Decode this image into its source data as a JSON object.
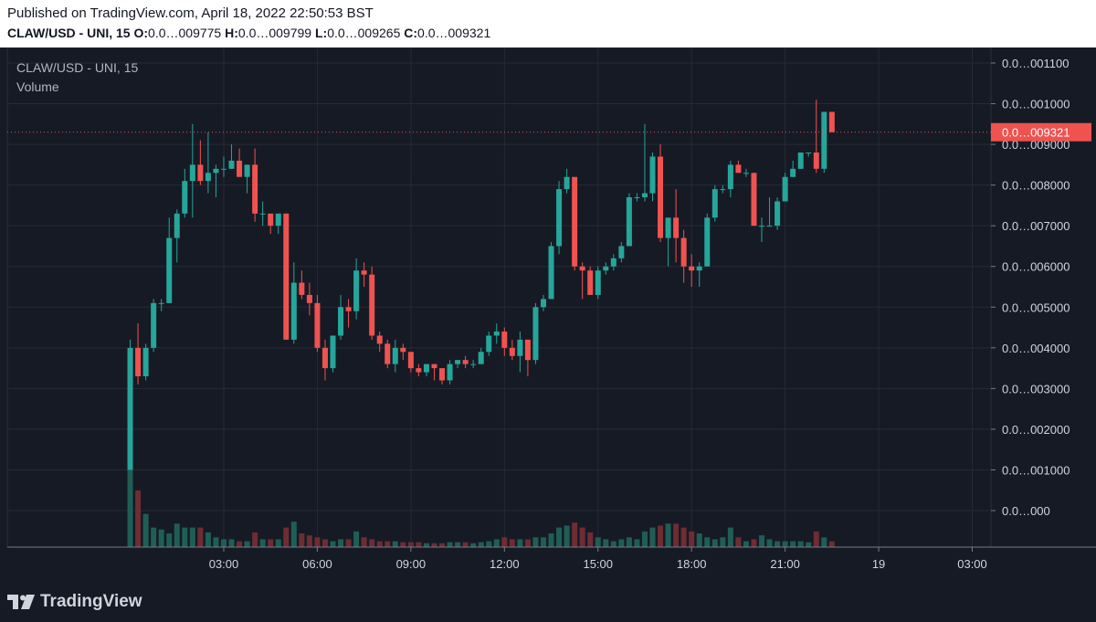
{
  "header": {
    "published": "Published on TradingView.com, April 18, 2022 22:50:53 BST",
    "symbol": "CLAW/USD - UNI, 15",
    "open_label": "O:",
    "open_value": "0.0…009775",
    "high_label": "H:",
    "high_value": "0.0…009799",
    "low_label": "L:",
    "low_value": "0.0…009265",
    "close_label": "C:",
    "close_value": "0.0…009321"
  },
  "legend": {
    "symbol": "CLAW/USD - UNI, 15",
    "volume": "Volume"
  },
  "footer": {
    "brand": "TradingView",
    "logo_icon": "tradingview-logo-icon"
  },
  "colors": {
    "background": "#161a25",
    "grid": "#262a36",
    "up": "#26a69a",
    "down": "#ef5350",
    "up_volume": "#1f5e55",
    "down_volume": "#6e2c33",
    "axis_text": "#d1d4dc",
    "price_line": "#ef5350"
  },
  "chart_data": {
    "type": "candlestick",
    "title": "CLAW/USD - UNI, 15",
    "interval": "15",
    "ylim": [
      -9e-07,
      1.12e-05
    ],
    "y_ticks": [
      {
        "value": 1.1e-05,
        "label": "0.0…001100"
      },
      {
        "value": 1e-05,
        "label": "0.0…001000"
      },
      {
        "value": 9e-06,
        "label": "0.0…009000"
      },
      {
        "value": 8e-06,
        "label": "0.0…008000"
      },
      {
        "value": 7e-06,
        "label": "0.0…007000"
      },
      {
        "value": 6e-06,
        "label": "0.0…006000"
      },
      {
        "value": 5e-06,
        "label": "0.0…005000"
      },
      {
        "value": 4e-06,
        "label": "0.0…004000"
      },
      {
        "value": 3e-06,
        "label": "0.0…003000"
      },
      {
        "value": 2e-06,
        "label": "0.0…002000"
      },
      {
        "value": 1e-06,
        "label": "0.0…001000"
      },
      {
        "value": 0.0,
        "label": "0.0…000"
      }
    ],
    "x_ticks": [
      {
        "hours": 3,
        "label": "03:00"
      },
      {
        "hours": 6,
        "label": "06:00"
      },
      {
        "hours": 9,
        "label": "09:00"
      },
      {
        "hours": 12,
        "label": "12:00"
      },
      {
        "hours": 15,
        "label": "15:00"
      },
      {
        "hours": 18,
        "label": "18:00"
      },
      {
        "hours": 21,
        "label": "21:00"
      },
      {
        "hours": 24,
        "label": "19"
      },
      {
        "hours": 27,
        "label": "03:00"
      }
    ],
    "x_range_hours": [
      -3.94,
      27.6
    ],
    "last_price": {
      "value": 9.3e-06,
      "label": "0.0…009321"
    },
    "volume_max": 100,
    "candles": [
      {
        "o": 1e-06,
        "h": 4.2e-06,
        "l": 1e-06,
        "c": 4e-06,
        "v": 100
      },
      {
        "o": 4e-06,
        "h": 4.6e-06,
        "l": 3.1e-06,
        "c": 3.3e-06,
        "v": 58
      },
      {
        "o": 3.3e-06,
        "h": 4.1e-06,
        "l": 3.2e-06,
        "c": 4e-06,
        "v": 34
      },
      {
        "o": 4e-06,
        "h": 5.2e-06,
        "l": 3.9e-06,
        "c": 5.1e-06,
        "v": 20
      },
      {
        "o": 5.1e-06,
        "h": 5.2e-06,
        "l": 4.9e-06,
        "c": 5.1e-06,
        "v": 18
      },
      {
        "o": 5.1e-06,
        "h": 7.2e-06,
        "l": 5.1e-06,
        "c": 6.7e-06,
        "v": 14
      },
      {
        "o": 6.7e-06,
        "h": 7.4e-06,
        "l": 6.1e-06,
        "c": 7.3e-06,
        "v": 24
      },
      {
        "o": 7.3e-06,
        "h": 8.4e-06,
        "l": 7.2e-06,
        "c": 8.1e-06,
        "v": 20
      },
      {
        "o": 8.1e-06,
        "h": 9.5e-06,
        "l": 7.2e-06,
        "c": 8.5e-06,
        "v": 20
      },
      {
        "o": 8.5e-06,
        "h": 9.1e-06,
        "l": 8e-06,
        "c": 8.1e-06,
        "v": 20
      },
      {
        "o": 8.1e-06,
        "h": 9.3e-06,
        "l": 7.8e-06,
        "c": 8.3e-06,
        "v": 15
      },
      {
        "o": 8.3e-06,
        "h": 8.5e-06,
        "l": 7.7e-06,
        "c": 8.4e-06,
        "v": 10
      },
      {
        "o": 8.4e-06,
        "h": 8.7e-06,
        "l": 8.2e-06,
        "c": 8.4e-06,
        "v": 8
      },
      {
        "o": 8.4e-06,
        "h": 9e-06,
        "l": 8.4e-06,
        "c": 8.6e-06,
        "v": 8
      },
      {
        "o": 8.6e-06,
        "h": 8.9e-06,
        "l": 8.2e-06,
        "c": 8.2e-06,
        "v": 6
      },
      {
        "o": 8.2e-06,
        "h": 8.5e-06,
        "l": 7.8e-06,
        "c": 8.5e-06,
        "v": 6
      },
      {
        "o": 8.5e-06,
        "h": 8.9e-06,
        "l": 7.1e-06,
        "c": 7.3e-06,
        "v": 15
      },
      {
        "o": 7.3e-06,
        "h": 7.6e-06,
        "l": 7e-06,
        "c": 7.3e-06,
        "v": 8
      },
      {
        "o": 7.3e-06,
        "h": 7.3e-06,
        "l": 6.8e-06,
        "c": 7e-06,
        "v": 8
      },
      {
        "o": 7e-06,
        "h": 7.3e-06,
        "l": 6.8e-06,
        "c": 7.3e-06,
        "v": 8
      },
      {
        "o": 7.3e-06,
        "h": 7.3e-06,
        "l": 4.2e-06,
        "c": 4.2e-06,
        "v": 20
      },
      {
        "o": 4.2e-06,
        "h": 6.1e-06,
        "l": 4.1e-06,
        "c": 5.6e-06,
        "v": 26
      },
      {
        "o": 5.6e-06,
        "h": 5.9e-06,
        "l": 5.2e-06,
        "c": 5.3e-06,
        "v": 14
      },
      {
        "o": 5.3e-06,
        "h": 5.6e-06,
        "l": 4.8e-06,
        "c": 5.1e-06,
        "v": 12
      },
      {
        "o": 5.1e-06,
        "h": 5.3e-06,
        "l": 3.9e-06,
        "c": 4e-06,
        "v": 10
      },
      {
        "o": 4e-06,
        "h": 4.2e-06,
        "l": 3.2e-06,
        "c": 3.5e-06,
        "v": 8
      },
      {
        "o": 3.5e-06,
        "h": 4.3e-06,
        "l": 3.4e-06,
        "c": 4.3e-06,
        "v": 6
      },
      {
        "o": 4.3e-06,
        "h": 5.3e-06,
        "l": 4.2e-06,
        "c": 5e-06,
        "v": 8
      },
      {
        "o": 5e-06,
        "h": 5.2e-06,
        "l": 4.5e-06,
        "c": 4.9e-06,
        "v": 8
      },
      {
        "o": 4.9e-06,
        "h": 6.2e-06,
        "l": 4.7e-06,
        "c": 5.9e-06,
        "v": 16
      },
      {
        "o": 5.9e-06,
        "h": 6.1e-06,
        "l": 5.5e-06,
        "c": 5.8e-06,
        "v": 10
      },
      {
        "o": 5.8e-06,
        "h": 6e-06,
        "l": 4.2e-06,
        "c": 4.3e-06,
        "v": 8
      },
      {
        "o": 4.3e-06,
        "h": 4.4e-06,
        "l": 3.9e-06,
        "c": 4.1e-06,
        "v": 6
      },
      {
        "o": 4.1e-06,
        "h": 4.2e-06,
        "l": 3.5e-06,
        "c": 3.6e-06,
        "v": 6
      },
      {
        "o": 3.6e-06,
        "h": 4.2e-06,
        "l": 3.4e-06,
        "c": 4e-06,
        "v": 6
      },
      {
        "o": 4e-06,
        "h": 4.1e-06,
        "l": 3.7e-06,
        "c": 3.9e-06,
        "v": 5
      },
      {
        "o": 3.9e-06,
        "h": 3.9e-06,
        "l": 3.4e-06,
        "c": 3.5e-06,
        "v": 5
      },
      {
        "o": 3.5e-06,
        "h": 3.6e-06,
        "l": 3.3e-06,
        "c": 3.4e-06,
        "v": 5
      },
      {
        "o": 3.4e-06,
        "h": 3.6e-06,
        "l": 3.3e-06,
        "c": 3.6e-06,
        "v": 4
      },
      {
        "o": 3.6e-06,
        "h": 3.6e-06,
        "l": 3.2e-06,
        "c": 3.5e-06,
        "v": 4
      },
      {
        "o": 3.5e-06,
        "h": 3.5e-06,
        "l": 3.1e-06,
        "c": 3.2e-06,
        "v": 4
      },
      {
        "o": 3.2e-06,
        "h": 3.7e-06,
        "l": 3.1e-06,
        "c": 3.6e-06,
        "v": 5
      },
      {
        "o": 3.6e-06,
        "h": 3.7e-06,
        "l": 3.5e-06,
        "c": 3.7e-06,
        "v": 5
      },
      {
        "o": 3.7e-06,
        "h": 3.8e-06,
        "l": 3.5e-06,
        "c": 3.6e-06,
        "v": 5
      },
      {
        "o": 3.6e-06,
        "h": 3.7e-06,
        "l": 3.5e-06,
        "c": 3.6e-06,
        "v": 4
      },
      {
        "o": 3.6e-06,
        "h": 4e-06,
        "l": 3.6e-06,
        "c": 3.9e-06,
        "v": 5
      },
      {
        "o": 3.9e-06,
        "h": 4.4e-06,
        "l": 3.8e-06,
        "c": 4.3e-06,
        "v": 6
      },
      {
        "o": 4.3e-06,
        "h": 4.6e-06,
        "l": 4.1e-06,
        "c": 4.4e-06,
        "v": 8
      },
      {
        "o": 4.4e-06,
        "h": 4.5e-06,
        "l": 3.8e-06,
        "c": 4e-06,
        "v": 10
      },
      {
        "o": 4e-06,
        "h": 4.2e-06,
        "l": 3.7e-06,
        "c": 3.8e-06,
        "v": 8
      },
      {
        "o": 3.8e-06,
        "h": 4.4e-06,
        "l": 3.4e-06,
        "c": 4.2e-06,
        "v": 8
      },
      {
        "o": 4.2e-06,
        "h": 4.2e-06,
        "l": 3.3e-06,
        "c": 3.7e-06,
        "v": 8
      },
      {
        "o": 3.7e-06,
        "h": 5.1e-06,
        "l": 3.6e-06,
        "c": 5e-06,
        "v": 10
      },
      {
        "o": 5e-06,
        "h": 5.3e-06,
        "l": 4.9e-06,
        "c": 5.2e-06,
        "v": 10
      },
      {
        "o": 5.2e-06,
        "h": 6.6e-06,
        "l": 5.2e-06,
        "c": 6.5e-06,
        "v": 14
      },
      {
        "o": 6.5e-06,
        "h": 8.1e-06,
        "l": 6.3e-06,
        "c": 7.9e-06,
        "v": 20
      },
      {
        "o": 7.9e-06,
        "h": 8.4e-06,
        "l": 7.8e-06,
        "c": 8.2e-06,
        "v": 22
      },
      {
        "o": 8.2e-06,
        "h": 8.2e-06,
        "l": 5.9e-06,
        "c": 6e-06,
        "v": 25
      },
      {
        "o": 6e-06,
        "h": 6.1e-06,
        "l": 5.2e-06,
        "c": 5.9e-06,
        "v": 20
      },
      {
        "o": 5.9e-06,
        "h": 6e-06,
        "l": 5.3e-06,
        "c": 5.3e-06,
        "v": 15
      },
      {
        "o": 5.3e-06,
        "h": 6e-06,
        "l": 5.2e-06,
        "c": 5.9e-06,
        "v": 10
      },
      {
        "o": 5.9e-06,
        "h": 6.1e-06,
        "l": 5.8e-06,
        "c": 6e-06,
        "v": 8
      },
      {
        "o": 6e-06,
        "h": 6.3e-06,
        "l": 5.9e-06,
        "c": 6.2e-06,
        "v": 6
      },
      {
        "o": 6.2e-06,
        "h": 6.6e-06,
        "l": 6.1e-06,
        "c": 6.5e-06,
        "v": 8
      },
      {
        "o": 6.5e-06,
        "h": 7.8e-06,
        "l": 6.5e-06,
        "c": 7.7e-06,
        "v": 10
      },
      {
        "o": 7.7e-06,
        "h": 7.8e-06,
        "l": 7.6e-06,
        "c": 7.7e-06,
        "v": 8
      },
      {
        "o": 7.7e-06,
        "h": 9.5e-06,
        "l": 7.6e-06,
        "c": 7.8e-06,
        "v": 16
      },
      {
        "o": 7.8e-06,
        "h": 8.8e-06,
        "l": 7.6e-06,
        "c": 8.7e-06,
        "v": 20
      },
      {
        "o": 8.7e-06,
        "h": 9e-06,
        "l": 6.6e-06,
        "c": 6.7e-06,
        "v": 22
      },
      {
        "o": 6.7e-06,
        "h": 7.2e-06,
        "l": 6e-06,
        "c": 7.2e-06,
        "v": 24
      },
      {
        "o": 7.2e-06,
        "h": 7.9e-06,
        "l": 6.1e-06,
        "c": 6.7e-06,
        "v": 24
      },
      {
        "o": 6.7e-06,
        "h": 6.9e-06,
        "l": 5.6e-06,
        "c": 6e-06,
        "v": 20
      },
      {
        "o": 6e-06,
        "h": 6.3e-06,
        "l": 5.5e-06,
        "c": 5.9e-06,
        "v": 16
      },
      {
        "o": 5.9e-06,
        "h": 6.1e-06,
        "l": 5.5e-06,
        "c": 6e-06,
        "v": 14
      },
      {
        "o": 6e-06,
        "h": 7.3e-06,
        "l": 6e-06,
        "c": 7.2e-06,
        "v": 10
      },
      {
        "o": 7.2e-06,
        "h": 8e-06,
        "l": 7.1e-06,
        "c": 7.9e-06,
        "v": 8
      },
      {
        "o": 7.9e-06,
        "h": 8e-06,
        "l": 7.8e-06,
        "c": 7.9e-06,
        "v": 10
      },
      {
        "o": 7.9e-06,
        "h": 8.6e-06,
        "l": 7.7e-06,
        "c": 8.5e-06,
        "v": 20
      },
      {
        "o": 8.5e-06,
        "h": 8.6e-06,
        "l": 8.3e-06,
        "c": 8.3e-06,
        "v": 10
      },
      {
        "o": 8.3e-06,
        "h": 8.4e-06,
        "l": 8.2e-06,
        "c": 8.3e-06,
        "v": 6
      },
      {
        "o": 8.3e-06,
        "h": 8.3e-06,
        "l": 7e-06,
        "c": 7e-06,
        "v": 8
      },
      {
        "o": 7e-06,
        "h": 7.2e-06,
        "l": 6.6e-06,
        "c": 7e-06,
        "v": 12
      },
      {
        "o": 7e-06,
        "h": 7.7e-06,
        "l": 7e-06,
        "c": 7e-06,
        "v": 8
      },
      {
        "o": 7e-06,
        "h": 7.7e-06,
        "l": 6.9e-06,
        "c": 7.6e-06,
        "v": 6
      },
      {
        "o": 7.6e-06,
        "h": 8.3e-06,
        "l": 7.6e-06,
        "c": 8.2e-06,
        "v": 6
      },
      {
        "o": 8.2e-06,
        "h": 8.6e-06,
        "l": 8.2e-06,
        "c": 8.4e-06,
        "v": 6
      },
      {
        "o": 8.4e-06,
        "h": 8.8e-06,
        "l": 8.4e-06,
        "c": 8.8e-06,
        "v": 6
      },
      {
        "o": 8.8e-06,
        "h": 8.8e-06,
        "l": 8.7e-06,
        "c": 8.8e-06,
        "v": 5
      },
      {
        "o": 8.8e-06,
        "h": 1.01e-05,
        "l": 8.3e-06,
        "c": 8.4e-06,
        "v": 16
      },
      {
        "o": 8.4e-06,
        "h": 9.8e-06,
        "l": 8.3e-06,
        "c": 9.8e-06,
        "v": 10
      },
      {
        "o": 9.8e-06,
        "h": 9.8e-06,
        "l": 9.3e-06,
        "c": 9.3e-06,
        "v": 6
      }
    ]
  }
}
